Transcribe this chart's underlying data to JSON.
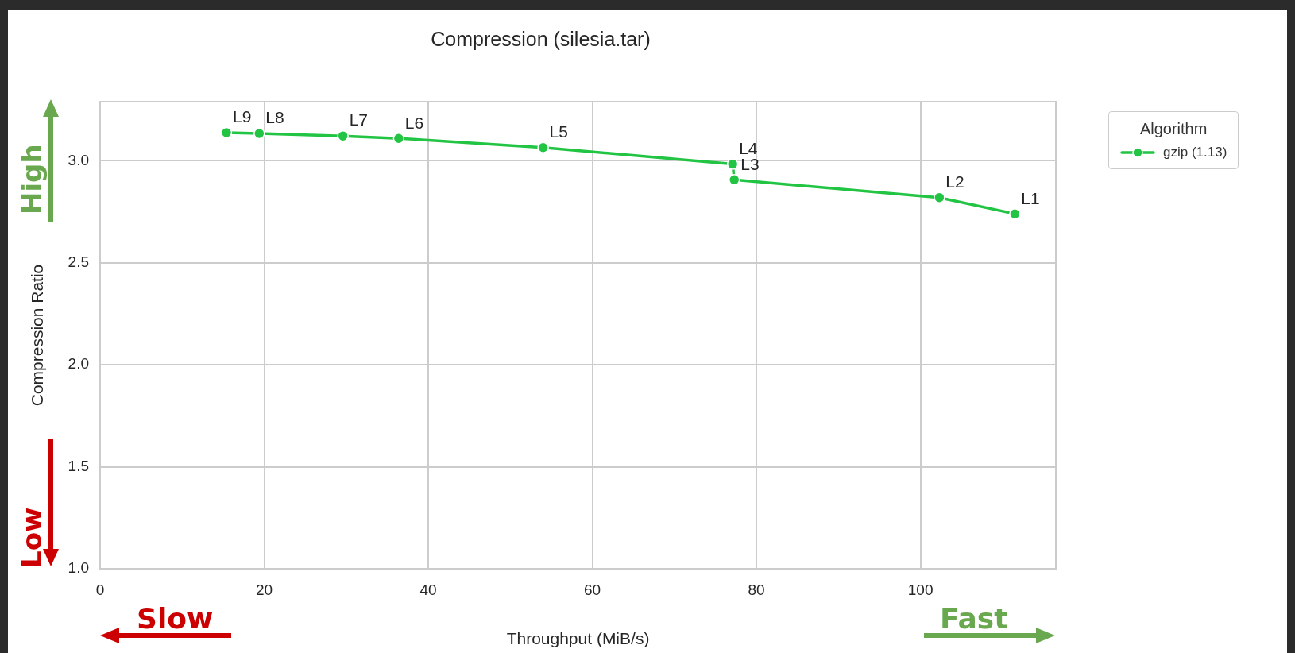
{
  "chart_data": {
    "type": "line",
    "title": "Compression (silesia.tar)",
    "xlabel": "Throughput (MiB/s)",
    "ylabel": "Compression Ratio",
    "legend_title": "Algorithm",
    "legend": "top right",
    "grid": true,
    "marker": "circle",
    "line_style": "solid",
    "xlim": [
      0,
      116.5
    ],
    "xticks": [
      0,
      20,
      40,
      60,
      80,
      100
    ],
    "ylim": [
      1.0,
      3.29
    ],
    "yticks": [
      {
        "value": 1.0,
        "label": "1.0"
      },
      {
        "value": 1.5,
        "label": "1.5"
      },
      {
        "value": 2.0,
        "label": "2.0"
      },
      {
        "value": 2.5,
        "label": "2.5"
      },
      {
        "value": 3.0,
        "label": "3.0"
      }
    ],
    "x": [
      15.4,
      19.4,
      29.6,
      36.4,
      54.0,
      77.1,
      77.3,
      102.3,
      111.5
    ],
    "series": [
      {
        "name": "gzip (1.13)",
        "color": "#22c443",
        "values": [
          3.138,
          3.134,
          3.122,
          3.11,
          3.065,
          2.984,
          2.907,
          2.82,
          2.74
        ]
      }
    ],
    "annotations": [
      {
        "text": "L9",
        "x": 15.4,
        "y": 3.138
      },
      {
        "text": "L8",
        "x": 19.4,
        "y": 3.134
      },
      {
        "text": "L7",
        "x": 29.6,
        "y": 3.122
      },
      {
        "text": "L6",
        "x": 36.4,
        "y": 3.11
      },
      {
        "text": "L5",
        "x": 54.0,
        "y": 3.065
      },
      {
        "text": "L4",
        "x": 77.1,
        "y": 2.984
      },
      {
        "text": "L3",
        "x": 77.3,
        "y": 2.907
      },
      {
        "text": "L2",
        "x": 102.3,
        "y": 2.82
      },
      {
        "text": "L1",
        "x": 111.5,
        "y": 2.74
      },
      "High",
      "Low",
      "Slow",
      "Fast"
    ]
  }
}
